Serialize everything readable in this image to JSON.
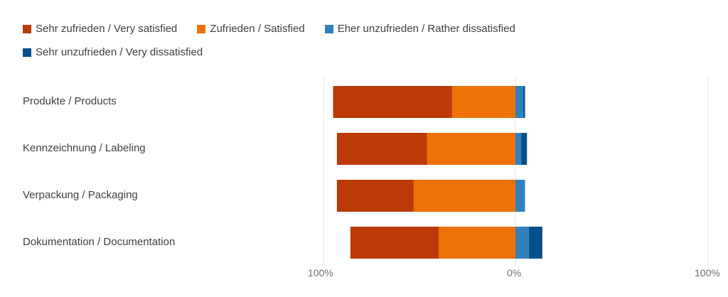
{
  "chart_data": {
    "type": "bar",
    "orientation": "horizontal",
    "layout": "diverging-stacked",
    "title": "",
    "xlabel": "",
    "ylabel": "",
    "xlim": [
      -100,
      100
    ],
    "x_tick_labels": [
      "100%",
      "0%",
      "100%"
    ],
    "legend_position": "top-left",
    "grid": false,
    "categories": [
      "Produkte / Products",
      "Kennzeichnung / Labeling",
      "Verpackung / Packaging",
      "Dokumentation / Documentation"
    ],
    "series": [
      {
        "name": "Sehr zufrieden / Very satisfied",
        "side": "negative",
        "color": "#BB3A06",
        "values": [
          62,
          47,
          40,
          46
        ]
      },
      {
        "name": "Zufrieden / Satisfied",
        "side": "negative",
        "color": "#EC7207",
        "values": [
          33,
          46,
          53,
          40
        ]
      },
      {
        "name": "Eher unzufrieden / Rather dissatisfied",
        "side": "positive",
        "color": "#3080BE",
        "values": [
          4,
          3,
          5,
          7
        ]
      },
      {
        "name": "Sehr unzufrieden / Very dissatisfied",
        "side": "positive",
        "color": "#04508C",
        "values": [
          1,
          3,
          0,
          7
        ]
      }
    ]
  }
}
